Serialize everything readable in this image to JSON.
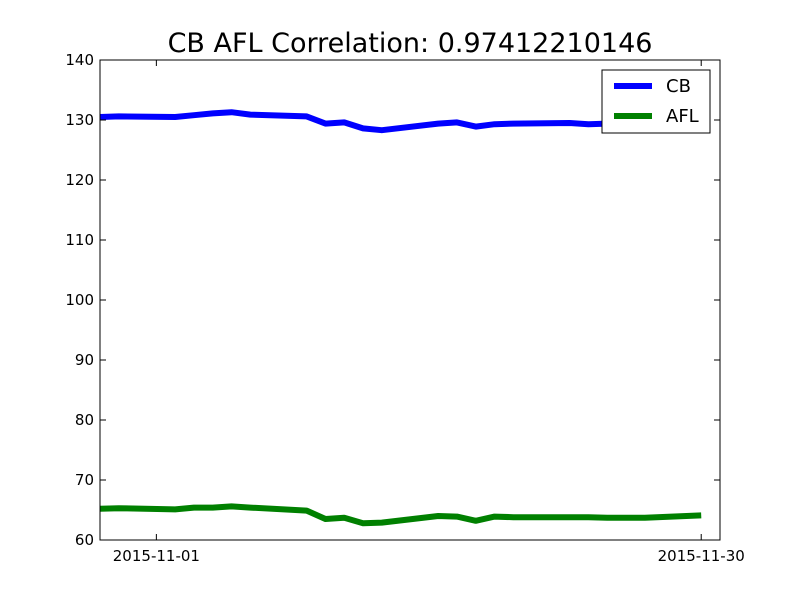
{
  "chart_data": {
    "type": "line",
    "title": "CB AFL Correlation: 0.97412210146",
    "xlabel": "",
    "ylabel": "",
    "ylim": [
      60,
      140
    ],
    "yticks": [
      60,
      70,
      80,
      90,
      100,
      110,
      120,
      130,
      140
    ],
    "xlim": [
      "2015-10-29",
      "2015-12-01"
    ],
    "xticks": [
      "2015-11-01",
      "2015-11-30"
    ],
    "grid": false,
    "legend": "top-right",
    "x": [
      "2015-10-29",
      "2015-10-30",
      "2015-11-02",
      "2015-11-03",
      "2015-11-04",
      "2015-11-05",
      "2015-11-06",
      "2015-11-09",
      "2015-11-10",
      "2015-11-11",
      "2015-11-12",
      "2015-11-13",
      "2015-11-16",
      "2015-11-17",
      "2015-11-18",
      "2015-11-19",
      "2015-11-20",
      "2015-11-23",
      "2015-11-24",
      "2015-11-25",
      "2015-11-27",
      "2015-11-30"
    ],
    "series": [
      {
        "name": "CB",
        "color": "#0000ff",
        "values": [
          130.5,
          130.6,
          130.5,
          130.8,
          131.1,
          131.3,
          130.9,
          130.6,
          129.4,
          129.6,
          128.6,
          128.3,
          129.4,
          129.6,
          128.9,
          129.3,
          129.4,
          129.5,
          129.3,
          129.4,
          129.5,
          129.9
        ]
      },
      {
        "name": "AFL",
        "color": "#008000",
        "values": [
          65.2,
          65.3,
          65.1,
          65.4,
          65.4,
          65.6,
          65.4,
          64.9,
          63.5,
          63.7,
          62.8,
          62.9,
          64.0,
          63.9,
          63.2,
          63.9,
          63.8,
          63.8,
          63.8,
          63.7,
          63.7,
          64.1
        ]
      }
    ]
  }
}
